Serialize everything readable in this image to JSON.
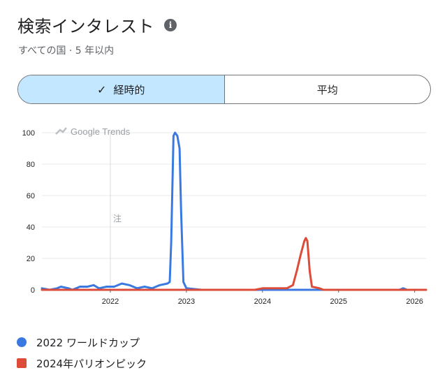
{
  "header": {
    "title": "検索インタレスト",
    "info_icon": "i",
    "subtitle": "すべての国 · 5 年以内"
  },
  "toggle": {
    "options": [
      {
        "label": "経時的",
        "selected": true
      },
      {
        "label": "平均",
        "selected": false
      }
    ]
  },
  "chart_data": {
    "type": "line",
    "watermark": "Google Trends",
    "annotation": {
      "x": 2022.0,
      "label": "注"
    },
    "xlim": [
      2021.1,
      2026.15
    ],
    "ylim": [
      0,
      100
    ],
    "x_ticks": [
      2022,
      2023,
      2024,
      2025,
      2026
    ],
    "y_ticks": [
      0,
      20,
      40,
      60,
      80,
      100
    ],
    "grid": true,
    "legend_position": "bottom-left",
    "series": [
      {
        "name": "2022 ワールドカップ",
        "color": "#3a7ae0",
        "points": [
          [
            2021.1,
            1
          ],
          [
            2021.2,
            0
          ],
          [
            2021.3,
            1
          ],
          [
            2021.35,
            2
          ],
          [
            2021.45,
            1
          ],
          [
            2021.5,
            0
          ],
          [
            2021.6,
            2
          ],
          [
            2021.7,
            2
          ],
          [
            2021.78,
            3
          ],
          [
            2021.85,
            1
          ],
          [
            2021.95,
            2
          ],
          [
            2022.05,
            2
          ],
          [
            2022.15,
            4
          ],
          [
            2022.25,
            3
          ],
          [
            2022.35,
            1
          ],
          [
            2022.45,
            2
          ],
          [
            2022.55,
            1
          ],
          [
            2022.65,
            3
          ],
          [
            2022.75,
            4
          ],
          [
            2022.78,
            5
          ],
          [
            2022.8,
            30
          ],
          [
            2022.83,
            98
          ],
          [
            2022.85,
            100
          ],
          [
            2022.88,
            98
          ],
          [
            2022.91,
            90
          ],
          [
            2022.93,
            50
          ],
          [
            2022.96,
            5
          ],
          [
            2023.0,
            1
          ],
          [
            2023.2,
            0
          ],
          [
            2024.0,
            0
          ],
          [
            2025.0,
            0
          ],
          [
            2025.8,
            0
          ],
          [
            2025.85,
            1
          ],
          [
            2025.9,
            0
          ],
          [
            2026.15,
            0
          ]
        ]
      },
      {
        "name": "2024年パリオンピック",
        "color": "#dd4b39",
        "points": [
          [
            2021.1,
            0
          ],
          [
            2023.9,
            0
          ],
          [
            2024.0,
            1
          ],
          [
            2024.1,
            1
          ],
          [
            2024.2,
            1
          ],
          [
            2024.32,
            1
          ],
          [
            2024.4,
            3
          ],
          [
            2024.45,
            12
          ],
          [
            2024.5,
            22
          ],
          [
            2024.55,
            31
          ],
          [
            2024.57,
            33
          ],
          [
            2024.59,
            31
          ],
          [
            2024.62,
            12
          ],
          [
            2024.65,
            2
          ],
          [
            2024.75,
            1
          ],
          [
            2024.8,
            0
          ],
          [
            2026.15,
            0
          ]
        ]
      }
    ]
  }
}
